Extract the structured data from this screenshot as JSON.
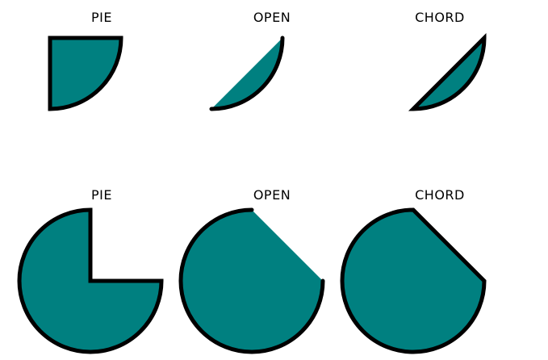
{
  "colors": {
    "fill": "#008080",
    "stroke": "#000000",
    "background": "#ffffff"
  },
  "rows": [
    {
      "label_group": "quarter-arcs",
      "shapes": [
        {
          "label": "PIE",
          "arc_type": "pie"
        },
        {
          "label": "OPEN",
          "arc_type": "open"
        },
        {
          "label": "CHORD",
          "arc_type": "chord"
        }
      ]
    },
    {
      "label_group": "three-quarter-arcs",
      "shapes": [
        {
          "label": "PIE",
          "arc_type": "pie"
        },
        {
          "label": "OPEN",
          "arc_type": "open"
        },
        {
          "label": "CHORD",
          "arc_type": "chord"
        }
      ]
    }
  ]
}
